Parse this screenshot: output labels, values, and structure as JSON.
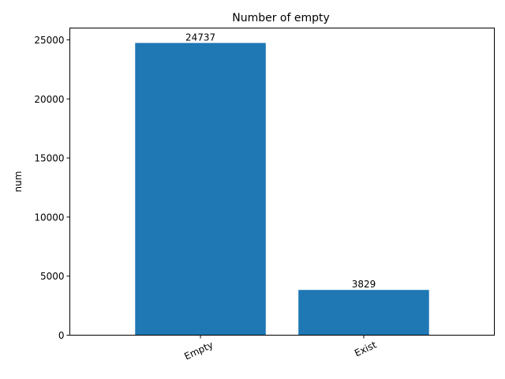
{
  "chart_data": {
    "type": "bar",
    "title": "Number of empty",
    "xlabel": "",
    "ylabel": "num",
    "categories": [
      "Empty",
      "Exist"
    ],
    "values": [
      24737,
      3829
    ],
    "ylim": [
      0,
      26000
    ],
    "yticks": [
      0,
      5000,
      10000,
      15000,
      20000,
      25000
    ],
    "x_tick_rotation": 25,
    "bar_color": "#1f77b4",
    "grid": false,
    "legend": "none"
  }
}
